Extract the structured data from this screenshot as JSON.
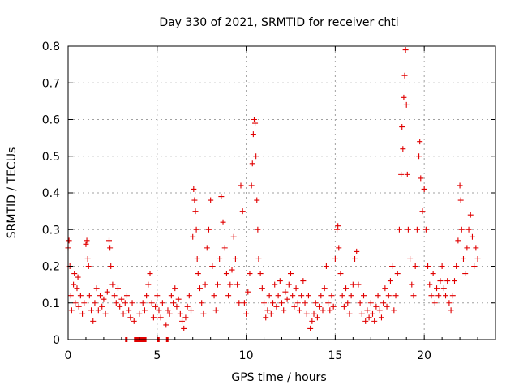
{
  "chart_data": {
    "type": "scatter",
    "title": "Day 330 of 2021, SRMTID for receiver chti",
    "xlabel": "GPS time / hours",
    "ylabel": "SRMTID / TECUs",
    "xlim": [
      0,
      24
    ],
    "ylim": [
      0,
      0.8
    ],
    "x_ticks": [
      0,
      5,
      10,
      15,
      20
    ],
    "x_tick_labels": [
      "0",
      "5",
      "10",
      "15",
      "20"
    ],
    "y_ticks": [
      0,
      0.1,
      0.2,
      0.3,
      0.4,
      0.5,
      0.6,
      0.7,
      0.8
    ],
    "y_tick_labels": [
      "0",
      "0.1",
      "0.2",
      "0.3",
      "0.4",
      "0.5",
      "0.6",
      "0.7",
      "0.8"
    ],
    "grid": true,
    "marker": "+",
    "color": "#e00000",
    "series": [
      {
        "name": "SRMTID",
        "points": [
          [
            0.0,
            0.25
          ],
          [
            0.05,
            0.27
          ],
          [
            0.1,
            0.2
          ],
          [
            0.15,
            0.12
          ],
          [
            0.2,
            0.08
          ],
          [
            0.3,
            0.15
          ],
          [
            0.35,
            0.18
          ],
          [
            0.4,
            0.1
          ],
          [
            0.5,
            0.14
          ],
          [
            0.55,
            0.17
          ],
          [
            0.6,
            0.09
          ],
          [
            0.7,
            0.12
          ],
          [
            0.8,
            0.07
          ],
          [
            0.9,
            0.1
          ],
          [
            1.0,
            0.26
          ],
          [
            1.05,
            0.27
          ],
          [
            1.1,
            0.22
          ],
          [
            1.15,
            0.2
          ],
          [
            1.2,
            0.12
          ],
          [
            1.3,
            0.08
          ],
          [
            1.4,
            0.05
          ],
          [
            1.5,
            0.1
          ],
          [
            1.6,
            0.14
          ],
          [
            1.7,
            0.08
          ],
          [
            1.8,
            0.12
          ],
          [
            1.9,
            0.09
          ],
          [
            2.0,
            0.11
          ],
          [
            2.1,
            0.07
          ],
          [
            2.2,
            0.13
          ],
          [
            2.3,
            0.27
          ],
          [
            2.35,
            0.25
          ],
          [
            2.4,
            0.2
          ],
          [
            2.5,
            0.15
          ],
          [
            2.6,
            0.12
          ],
          [
            2.7,
            0.1
          ],
          [
            2.8,
            0.14
          ],
          [
            2.9,
            0.09
          ],
          [
            3.0,
            0.11
          ],
          [
            3.1,
            0.07
          ],
          [
            3.2,
            0.1
          ],
          [
            3.3,
            0.12
          ],
          [
            3.4,
            0.08
          ],
          [
            3.5,
            0.06
          ],
          [
            3.6,
            0.1
          ],
          [
            3.7,
            0.05
          ],
          [
            4.0,
            0.07
          ],
          [
            4.2,
            0.1
          ],
          [
            4.3,
            0.08
          ],
          [
            4.4,
            0.12
          ],
          [
            4.5,
            0.15
          ],
          [
            4.6,
            0.18
          ],
          [
            4.7,
            0.1
          ],
          [
            4.8,
            0.06
          ],
          [
            4.9,
            0.09
          ],
          [
            5.0,
            0.12
          ],
          [
            5.1,
            0.08
          ],
          [
            5.2,
            0.06
          ],
          [
            5.3,
            0.1
          ],
          [
            5.5,
            0.04
          ],
          [
            5.6,
            0.08
          ],
          [
            5.7,
            0.07
          ],
          [
            5.8,
            0.12
          ],
          [
            5.9,
            0.1
          ],
          [
            6.0,
            0.14
          ],
          [
            6.1,
            0.09
          ],
          [
            6.2,
            0.11
          ],
          [
            6.3,
            0.07
          ],
          [
            6.4,
            0.05
          ],
          [
            6.5,
            0.03
          ],
          [
            6.6,
            0.06
          ],
          [
            6.7,
            0.09
          ],
          [
            6.8,
            0.12
          ],
          [
            6.9,
            0.08
          ],
          [
            7.0,
            0.28
          ],
          [
            7.05,
            0.41
          ],
          [
            7.1,
            0.38
          ],
          [
            7.15,
            0.35
          ],
          [
            7.2,
            0.3
          ],
          [
            7.25,
            0.22
          ],
          [
            7.3,
            0.18
          ],
          [
            7.4,
            0.14
          ],
          [
            7.5,
            0.1
          ],
          [
            7.6,
            0.07
          ],
          [
            7.7,
            0.15
          ],
          [
            7.8,
            0.25
          ],
          [
            7.9,
            0.3
          ],
          [
            8.0,
            0.38
          ],
          [
            8.1,
            0.2
          ],
          [
            8.2,
            0.12
          ],
          [
            8.3,
            0.08
          ],
          [
            8.4,
            0.15
          ],
          [
            8.5,
            0.22
          ],
          [
            8.6,
            0.39
          ],
          [
            8.7,
            0.32
          ],
          [
            8.8,
            0.25
          ],
          [
            8.9,
            0.18
          ],
          [
            9.0,
            0.12
          ],
          [
            9.1,
            0.15
          ],
          [
            9.2,
            0.19
          ],
          [
            9.3,
            0.28
          ],
          [
            9.4,
            0.22
          ],
          [
            9.5,
            0.15
          ],
          [
            9.6,
            0.1
          ],
          [
            9.7,
            0.42
          ],
          [
            9.8,
            0.35
          ],
          [
            9.9,
            0.1
          ],
          [
            10.0,
            0.07
          ],
          [
            10.1,
            0.13
          ],
          [
            10.2,
            0.18
          ],
          [
            10.3,
            0.42
          ],
          [
            10.35,
            0.48
          ],
          [
            10.4,
            0.56
          ],
          [
            10.45,
            0.6
          ],
          [
            10.5,
            0.59
          ],
          [
            10.55,
            0.5
          ],
          [
            10.6,
            0.38
          ],
          [
            10.65,
            0.3
          ],
          [
            10.7,
            0.22
          ],
          [
            10.8,
            0.18
          ],
          [
            10.9,
            0.14
          ],
          [
            11.0,
            0.1
          ],
          [
            11.1,
            0.06
          ],
          [
            11.2,
            0.08
          ],
          [
            11.3,
            0.12
          ],
          [
            11.4,
            0.07
          ],
          [
            11.5,
            0.1
          ],
          [
            11.6,
            0.15
          ],
          [
            11.7,
            0.09
          ],
          [
            11.8,
            0.12
          ],
          [
            11.9,
            0.16
          ],
          [
            12.0,
            0.1
          ],
          [
            12.1,
            0.08
          ],
          [
            12.2,
            0.13
          ],
          [
            12.3,
            0.11
          ],
          [
            12.4,
            0.15
          ],
          [
            12.5,
            0.18
          ],
          [
            12.6,
            0.12
          ],
          [
            12.7,
            0.09
          ],
          [
            12.8,
            0.14
          ],
          [
            12.9,
            0.1
          ],
          [
            13.0,
            0.08
          ],
          [
            13.1,
            0.12
          ],
          [
            13.2,
            0.16
          ],
          [
            13.3,
            0.1
          ],
          [
            13.4,
            0.07
          ],
          [
            13.5,
            0.12
          ],
          [
            13.6,
            0.03
          ],
          [
            13.7,
            0.05
          ],
          [
            13.8,
            0.07
          ],
          [
            13.9,
            0.1
          ],
          [
            14.0,
            0.06
          ],
          [
            14.1,
            0.09
          ],
          [
            14.2,
            0.12
          ],
          [
            14.3,
            0.08
          ],
          [
            14.4,
            0.14
          ],
          [
            14.5,
            0.2
          ],
          [
            14.6,
            0.1
          ],
          [
            14.7,
            0.08
          ],
          [
            14.8,
            0.12
          ],
          [
            14.9,
            0.09
          ],
          [
            15.0,
            0.22
          ],
          [
            15.1,
            0.3
          ],
          [
            15.15,
            0.31
          ],
          [
            15.2,
            0.25
          ],
          [
            15.3,
            0.18
          ],
          [
            15.4,
            0.12
          ],
          [
            15.5,
            0.09
          ],
          [
            15.6,
            0.14
          ],
          [
            15.7,
            0.1
          ],
          [
            15.8,
            0.07
          ],
          [
            15.9,
            0.12
          ],
          [
            16.0,
            0.15
          ],
          [
            16.1,
            0.22
          ],
          [
            16.2,
            0.24
          ],
          [
            16.3,
            0.15
          ],
          [
            16.4,
            0.1
          ],
          [
            16.5,
            0.07
          ],
          [
            16.6,
            0.12
          ],
          [
            16.7,
            0.05
          ],
          [
            16.8,
            0.08
          ],
          [
            16.9,
            0.06
          ],
          [
            17.0,
            0.1
          ],
          [
            17.1,
            0.07
          ],
          [
            17.2,
            0.05
          ],
          [
            17.3,
            0.09
          ],
          [
            17.4,
            0.12
          ],
          [
            17.5,
            0.08
          ],
          [
            17.6,
            0.06
          ],
          [
            17.7,
            0.1
          ],
          [
            17.8,
            0.14
          ],
          [
            17.9,
            0.09
          ],
          [
            18.0,
            0.12
          ],
          [
            18.1,
            0.16
          ],
          [
            18.2,
            0.2
          ],
          [
            18.3,
            0.08
          ],
          [
            18.4,
            0.12
          ],
          [
            18.5,
            0.18
          ],
          [
            18.6,
            0.3
          ],
          [
            18.7,
            0.45
          ],
          [
            18.75,
            0.58
          ],
          [
            18.8,
            0.52
          ],
          [
            18.85,
            0.66
          ],
          [
            18.9,
            0.72
          ],
          [
            18.95,
            0.79
          ],
          [
            19.0,
            0.64
          ],
          [
            19.05,
            0.45
          ],
          [
            19.1,
            0.3
          ],
          [
            19.2,
            0.22
          ],
          [
            19.3,
            0.15
          ],
          [
            19.4,
            0.12
          ],
          [
            19.5,
            0.2
          ],
          [
            19.6,
            0.3
          ],
          [
            19.7,
            0.5
          ],
          [
            19.75,
            0.54
          ],
          [
            19.8,
            0.44
          ],
          [
            19.9,
            0.35
          ],
          [
            20.0,
            0.41
          ],
          [
            20.1,
            0.3
          ],
          [
            20.2,
            0.2
          ],
          [
            20.3,
            0.15
          ],
          [
            20.4,
            0.12
          ],
          [
            20.5,
            0.18
          ],
          [
            20.6,
            0.1
          ],
          [
            20.7,
            0.14
          ],
          [
            20.8,
            0.12
          ],
          [
            20.9,
            0.16
          ],
          [
            21.0,
            0.2
          ],
          [
            21.1,
            0.14
          ],
          [
            21.2,
            0.12
          ],
          [
            21.3,
            0.16
          ],
          [
            21.4,
            0.1
          ],
          [
            21.5,
            0.08
          ],
          [
            21.6,
            0.12
          ],
          [
            21.7,
            0.16
          ],
          [
            21.8,
            0.2
          ],
          [
            21.9,
            0.27
          ],
          [
            22.0,
            0.42
          ],
          [
            22.05,
            0.38
          ],
          [
            22.1,
            0.3
          ],
          [
            22.2,
            0.22
          ],
          [
            22.3,
            0.18
          ],
          [
            22.4,
            0.25
          ],
          [
            22.5,
            0.3
          ],
          [
            22.6,
            0.34
          ],
          [
            22.7,
            0.28
          ],
          [
            22.8,
            0.2
          ],
          [
            22.9,
            0.25
          ],
          [
            23.0,
            0.22
          ]
        ]
      }
    ],
    "gap_markers": [
      {
        "start": 3.2,
        "end": 3.3
      },
      {
        "start": 3.7,
        "end": 4.4
      },
      {
        "start": 5.0,
        "end": 5.1
      },
      {
        "start": 5.5,
        "end": 5.6
      }
    ]
  }
}
